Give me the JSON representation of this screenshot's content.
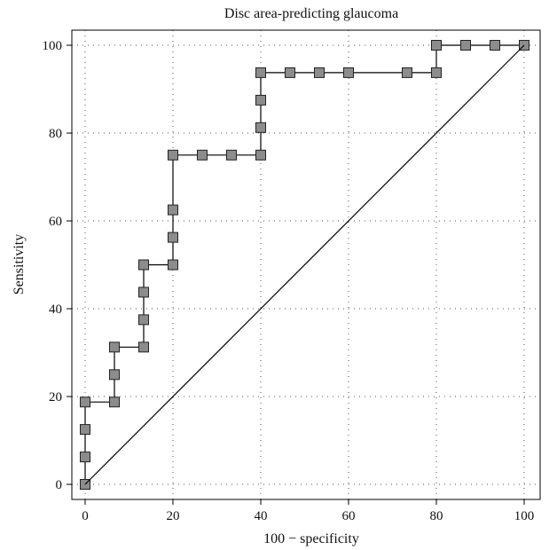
{
  "chart_data": {
    "type": "line",
    "title": "Disc area-predicting glaucoma",
    "xlabel": "100 − specificity",
    "ylabel": "Sensitivity",
    "xlim": [
      0,
      100
    ],
    "ylim": [
      0,
      100
    ],
    "x_ticks": [
      "0",
      "20",
      "40",
      "60",
      "80",
      "100"
    ],
    "y_ticks": [
      "0",
      "20",
      "40",
      "60",
      "80",
      "100"
    ],
    "grid": "dotted",
    "legend": "none",
    "series": [
      {
        "points": [
          [
            0,
            0
          ],
          [
            0,
            6.25
          ],
          [
            0,
            12.5
          ],
          [
            0,
            18.75
          ],
          [
            6.67,
            18.75
          ],
          [
            6.67,
            25
          ],
          [
            6.67,
            31.25
          ],
          [
            13.33,
            31.25
          ],
          [
            13.33,
            37.5
          ],
          [
            13.33,
            43.75
          ],
          [
            13.33,
            50
          ],
          [
            20,
            50
          ],
          [
            20,
            56.25
          ],
          [
            20,
            62.5
          ],
          [
            20,
            75
          ],
          [
            26.67,
            75
          ],
          [
            33.33,
            75
          ],
          [
            40,
            75
          ],
          [
            40,
            81.25
          ],
          [
            40,
            87.5
          ],
          [
            40,
            93.75
          ],
          [
            46.67,
            93.75
          ],
          [
            53.33,
            93.75
          ],
          [
            60,
            93.75
          ],
          [
            73.33,
            93.75
          ],
          [
            80,
            93.75
          ],
          [
            80,
            100
          ],
          [
            86.67,
            100
          ],
          [
            93.33,
            100
          ],
          [
            100,
            100
          ]
        ],
        "line_color": "#000000",
        "marker": "square",
        "marker_fill": "#8c8c8c"
      },
      {
        "points": [
          [
            0,
            0
          ],
          [
            100,
            100
          ]
        ],
        "line_color": "#000000",
        "marker": "none"
      }
    ]
  }
}
